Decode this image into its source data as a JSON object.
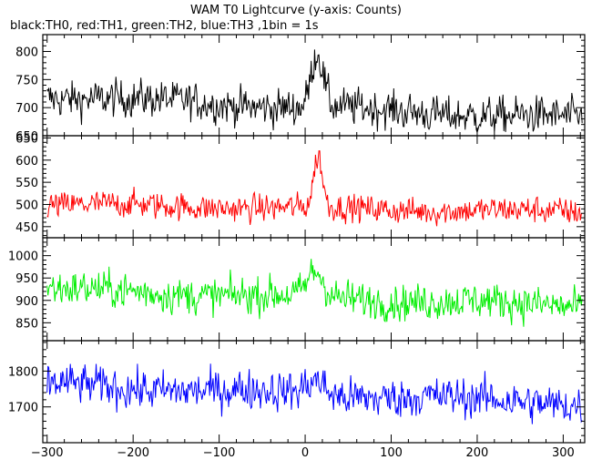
{
  "chart_data": {
    "type": "line",
    "title": "WAM T0 Lightcurve (y-axis: Counts)",
    "subtitle": "black:TH0, red:TH1, green:TH2, blue:TH3 ,1bin = 1s",
    "xlim": [
      -305,
      325
    ],
    "x_ticks": [
      -300,
      -200,
      -100,
      0,
      100,
      200,
      300
    ],
    "grid": false,
    "panels": [
      {
        "name": "TH0",
        "color": "#000000",
        "ylim": [
          650,
          830
        ],
        "y_ticks": [
          650,
          700,
          750,
          800
        ],
        "baseline_start": 720,
        "baseline_end": 680,
        "noise": 27,
        "peak": {
          "x": 14,
          "height": 95,
          "width": 7
        }
      },
      {
        "name": "TH1",
        "color": "#ff0000",
        "ylim": [
          425,
          655
        ],
        "y_ticks": [
          450,
          500,
          550,
          600,
          650
        ],
        "baseline_start": 500,
        "baseline_end": 483,
        "noise": 25,
        "peak": {
          "x": 15,
          "height": 115,
          "width": 5
        }
      },
      {
        "name": "TH2",
        "color": "#00ee00",
        "ylim": [
          810,
          1040
        ],
        "y_ticks": [
          850,
          900,
          950,
          1000
        ],
        "baseline_start": 925,
        "baseline_end": 888,
        "noise": 33,
        "peak": {
          "x": 12,
          "height": 55,
          "width": 9
        }
      },
      {
        "name": "TH3",
        "color": "#0000ff",
        "ylim": [
          1600,
          1885
        ],
        "y_ticks": [
          1700,
          1800
        ],
        "baseline_start": 1762,
        "baseline_end": 1710,
        "noise": 45,
        "peak": {
          "x": 12,
          "height": 40,
          "width": 10
        }
      }
    ]
  }
}
